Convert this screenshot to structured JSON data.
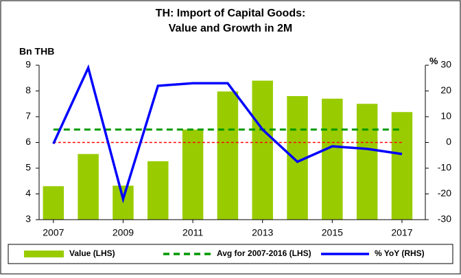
{
  "chart_data": {
    "type": "bar-line",
    "title": [
      "TH: Import of Capital Goods:",
      "Value and Growth in 2M"
    ],
    "ylabel": "Bn THB",
    "y2label": "%",
    "x": [
      2007,
      2008,
      2009,
      2010,
      2011,
      2012,
      2013,
      2014,
      2015,
      2016,
      2017
    ],
    "xlim": [
      2006.59,
      2017.67
    ],
    "xticks": [
      2007,
      2009,
      2011,
      2013,
      2015,
      2017
    ],
    "ylim": [
      3,
      9
    ],
    "yticks": [
      3,
      4,
      5,
      6,
      7,
      8,
      9
    ],
    "y2lim": [
      -30,
      30
    ],
    "y2ticks": [
      -30,
      -20,
      -10,
      0,
      10,
      20,
      30
    ],
    "series": [
      {
        "name": "Value (LHS)",
        "kind": "bar",
        "color": "#99cc00",
        "values": [
          4.3,
          5.55,
          4.32,
          5.27,
          6.5,
          7.98,
          8.4,
          7.8,
          7.7,
          7.5,
          7.18
        ]
      },
      {
        "name": "Avg for 2007-2016 (LHS)",
        "kind": "dashed-line",
        "color": "#009900",
        "values": [
          6.5,
          6.5,
          6.5,
          6.5,
          6.5,
          6.5,
          6.5,
          6.5,
          6.5,
          6.5,
          6.5
        ]
      },
      {
        "name": "% YoY (RHS)",
        "kind": "line",
        "axis": "y2",
        "color": "#0000ff",
        "values": [
          -0.5,
          29,
          -22,
          22,
          23,
          23,
          5,
          -7.5,
          -1.5,
          -2.5,
          -4.5
        ]
      }
    ],
    "zero_line": {
      "axis": "y2",
      "value": 0,
      "color": "#ff0000"
    }
  }
}
